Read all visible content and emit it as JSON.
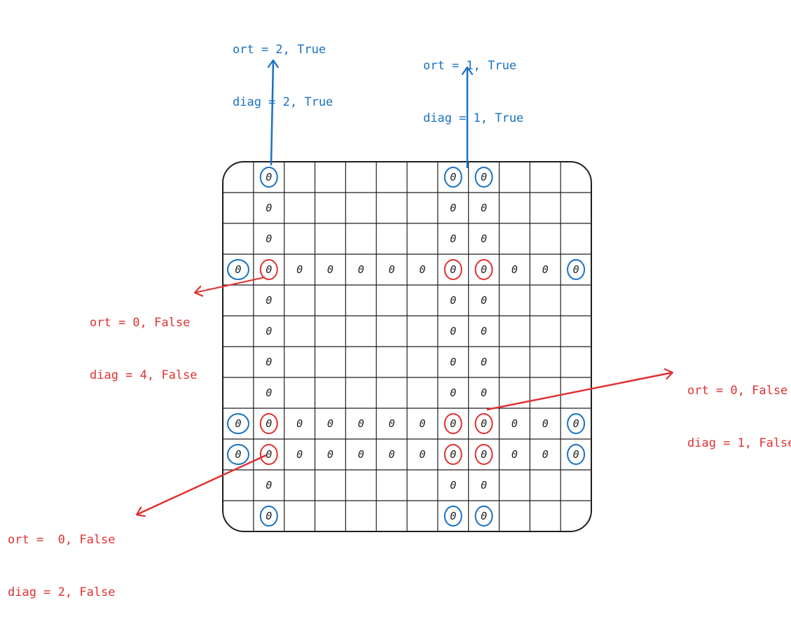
{
  "colors": {
    "blue": "#1971c2",
    "red": "#e03131",
    "ink": "#1e1e1e"
  },
  "grid": {
    "rows": 12,
    "cols": 12,
    "cell_symbol": "0",
    "row_cells": [
      [
        1,
        7,
        8
      ],
      [
        1,
        7,
        8
      ],
      [
        1,
        7,
        8
      ],
      [
        0,
        1,
        2,
        3,
        4,
        5,
        6,
        7,
        8,
        9,
        10,
        11
      ],
      [
        1,
        7,
        8
      ],
      [
        1,
        7,
        8
      ],
      [
        1,
        7,
        8
      ],
      [
        1,
        7,
        8
      ],
      [
        0,
        1,
        2,
        3,
        4,
        5,
        6,
        7,
        8,
        9,
        10,
        11
      ],
      [
        0,
        1,
        2,
        3,
        4,
        5,
        6,
        7,
        8,
        9,
        10,
        11
      ],
      [
        1,
        7,
        8
      ],
      [
        1,
        7,
        8
      ]
    ],
    "circled_blue": [
      [
        0,
        1
      ],
      [
        0,
        7
      ],
      [
        0,
        8
      ],
      [
        3,
        0
      ],
      [
        3,
        11
      ],
      [
        8,
        0
      ],
      [
        8,
        11
      ],
      [
        9,
        0
      ],
      [
        9,
        11
      ],
      [
        11,
        1
      ],
      [
        11,
        7
      ],
      [
        11,
        8
      ]
    ],
    "circled_red": [
      [
        3,
        1
      ],
      [
        3,
        7
      ],
      [
        3,
        8
      ],
      [
        8,
        1
      ],
      [
        8,
        7
      ],
      [
        8,
        8
      ],
      [
        9,
        1
      ],
      [
        9,
        7
      ],
      [
        9,
        8
      ]
    ]
  },
  "annotations": {
    "top_left": {
      "line1": "ort = 2, True",
      "line2": "diag = 2, True"
    },
    "top_right": {
      "line1": "ort = 1, True",
      "line2": "diag = 1, True"
    },
    "mid_left": {
      "line1": "ort = 0, False",
      "line2": "diag = 4, False"
    },
    "right": {
      "line1": "ort = 0, False",
      "line2": "diag = 1, False"
    },
    "bottom_left": {
      "line1": "ort =  0, False",
      "line2": "diag = 2, False"
    }
  }
}
